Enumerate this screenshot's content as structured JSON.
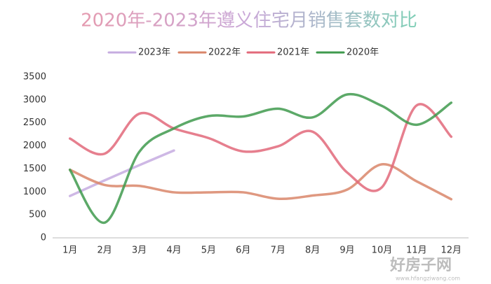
{
  "chart_data": {
    "type": "line",
    "title": "2020年-2023年遵义住宅月销售套数对比",
    "categories": [
      "1月",
      "2月",
      "3月",
      "4月",
      "5月",
      "6月",
      "7月",
      "8月",
      "9月",
      "10月",
      "11月",
      "12月"
    ],
    "series": [
      {
        "name": "2023年",
        "color": "#c6ace0",
        "values": [
          910,
          1250,
          1580,
          1900,
          null,
          null,
          null,
          null,
          null,
          null,
          null,
          null
        ]
      },
      {
        "name": "2022年",
        "color": "#d9866a",
        "values": [
          1480,
          1150,
          1130,
          990,
          990,
          990,
          850,
          920,
          1050,
          1600,
          1230,
          840
        ]
      },
      {
        "name": "2021年",
        "color": "#e2697a",
        "values": [
          2160,
          1830,
          2700,
          2380,
          2170,
          1880,
          1990,
          2310,
          1420,
          1100,
          2880,
          2200
        ]
      },
      {
        "name": "2020年",
        "color": "#3f9a4e",
        "values": [
          1480,
          330,
          1870,
          2380,
          2650,
          2640,
          2810,
          2620,
          3120,
          2870,
          2460,
          2940
        ]
      }
    ],
    "ylim": [
      0,
      3500
    ],
    "yticks": [
      0,
      500,
      1000,
      1500,
      2000,
      2500,
      3000,
      3500
    ],
    "grid": false,
    "legend": "top",
    "watermark": "好房子网",
    "watermark_url": "www.hfangziwang.com"
  }
}
